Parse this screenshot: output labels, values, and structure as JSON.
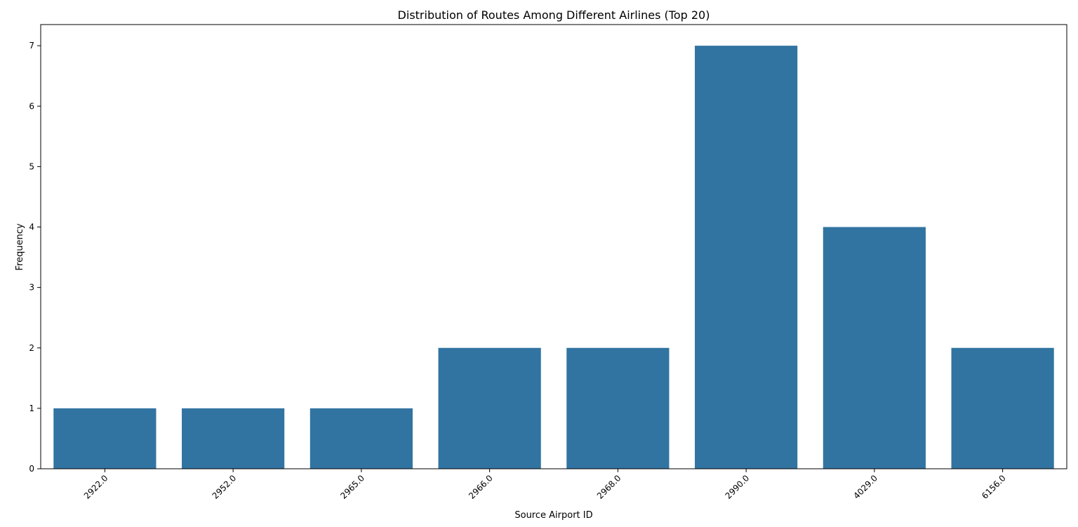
{
  "chart_data": {
    "type": "bar",
    "title": "Distribution of Routes Among Different Airlines (Top 20)",
    "xlabel": "Source Airport ID",
    "ylabel": "Frequency",
    "categories": [
      "2922.0",
      "2952.0",
      "2965.0",
      "2966.0",
      "2968.0",
      "2990.0",
      "4029.0",
      "6156.0"
    ],
    "values": [
      1,
      1,
      1,
      2,
      2,
      7,
      4,
      2
    ],
    "yticks": [
      "0",
      "1",
      "2",
      "3",
      "4",
      "5",
      "6",
      "7"
    ],
    "ylim": [
      0,
      7.35
    ],
    "grid": false,
    "bar_color": "#3274a1",
    "x_tick_rotation_deg": 45
  }
}
